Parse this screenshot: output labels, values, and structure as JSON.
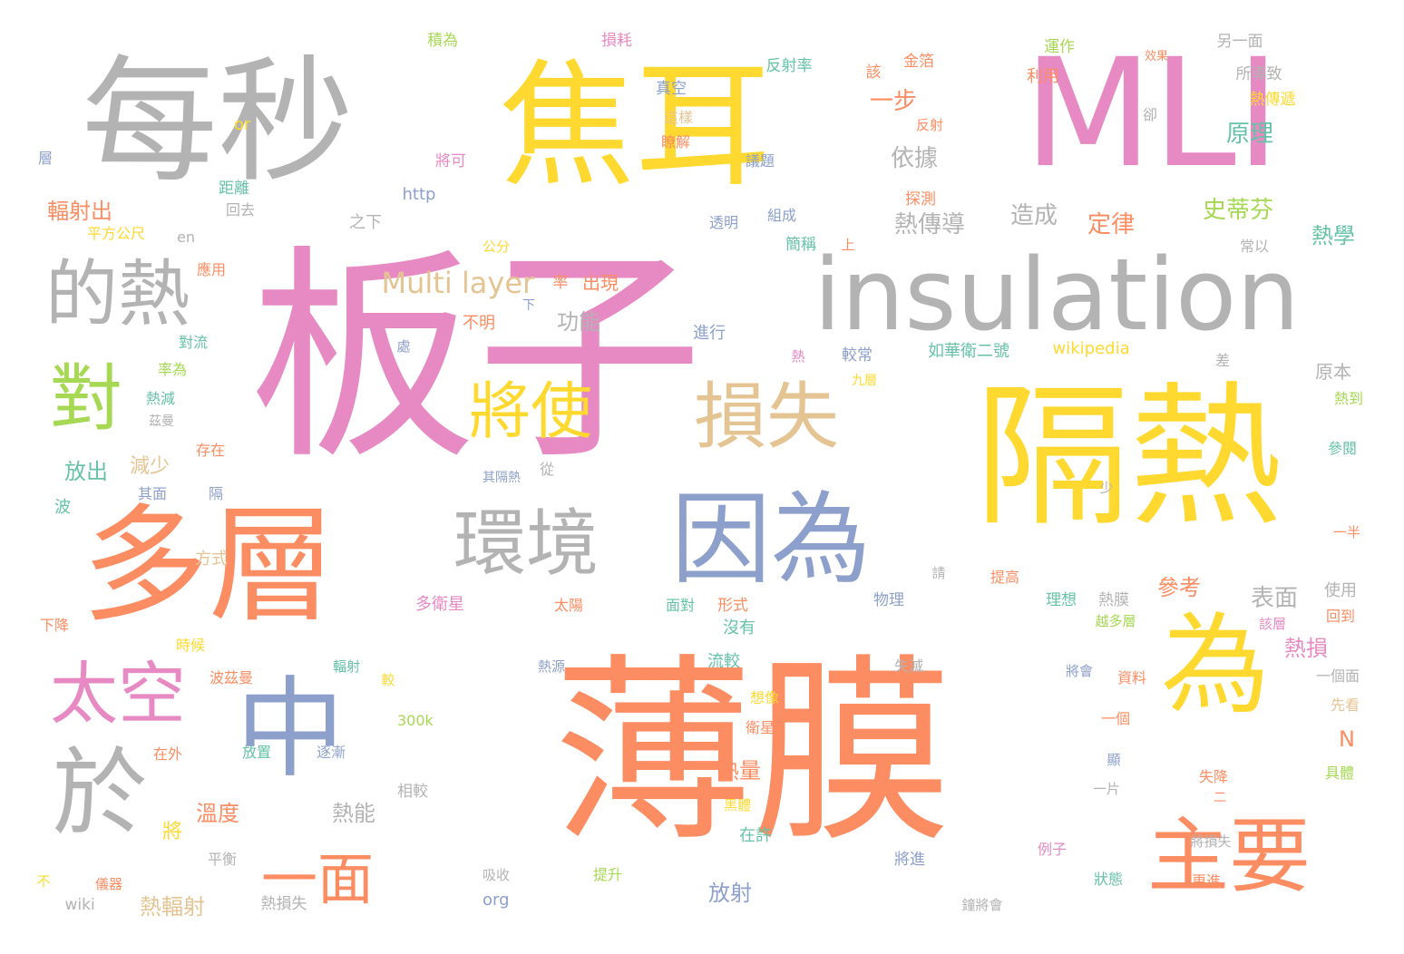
{
  "palette": {
    "gray": "#b3b3b3",
    "yellow": "#ffd92f",
    "pink": "#e78ac3",
    "orange": "#fc8d62",
    "blue": "#8da0cb",
    "tan": "#e5c494",
    "green": "#a6d854",
    "teal": "#66c2a5"
  },
  "words": [
    {
      "text": "每秒",
      "color": "gray"
    },
    {
      "text": "焦耳",
      "color": "yellow"
    },
    {
      "text": "MLI",
      "color": "pink"
    },
    {
      "text": "板子",
      "color": "pink"
    },
    {
      "text": "insulation",
      "color": "gray"
    },
    {
      "text": "的熱",
      "color": "gray"
    },
    {
      "text": "對",
      "color": "green"
    },
    {
      "text": "將使",
      "color": "yellow"
    },
    {
      "text": "損失",
      "color": "tan"
    },
    {
      "text": "隔熱",
      "color": "yellow"
    },
    {
      "text": "多層",
      "color": "orange"
    },
    {
      "text": "環境",
      "color": "gray"
    },
    {
      "text": "因為",
      "color": "blue"
    },
    {
      "text": "太空",
      "color": "pink"
    },
    {
      "text": "中",
      "color": "blue"
    },
    {
      "text": "薄膜",
      "color": "orange"
    },
    {
      "text": "為",
      "color": "yellow"
    },
    {
      "text": "於",
      "color": "gray"
    },
    {
      "text": "主要",
      "color": "orange"
    },
    {
      "text": "一面",
      "color": "orange"
    },
    {
      "text": "Multi layer",
      "color": "tan"
    },
    {
      "text": "熱傳導",
      "color": "gray"
    },
    {
      "text": "造成",
      "color": "gray"
    },
    {
      "text": "史蒂芬",
      "color": "green"
    },
    {
      "text": "定律",
      "color": "orange"
    },
    {
      "text": "依據",
      "color": "gray"
    },
    {
      "text": "一步",
      "color": "orange"
    },
    {
      "text": "原理",
      "color": "teal"
    },
    {
      "text": "熱學",
      "color": "teal"
    },
    {
      "text": "輻射出",
      "color": "orange"
    },
    {
      "text": "放出",
      "color": "teal"
    },
    {
      "text": "減少",
      "color": "tan"
    },
    {
      "text": "功能",
      "color": "gray"
    },
    {
      "text": "出現",
      "color": "orange"
    },
    {
      "text": "表面",
      "color": "gray"
    },
    {
      "text": "參考",
      "color": "orange"
    },
    {
      "text": "熱損",
      "color": "pink"
    },
    {
      "text": "原本",
      "color": "gray"
    },
    {
      "text": "熱量",
      "color": "orange"
    },
    {
      "text": "溫度",
      "color": "orange"
    },
    {
      "text": "熱能",
      "color": "gray"
    },
    {
      "text": "放射",
      "color": "blue"
    },
    {
      "text": "熱輻射",
      "color": "tan"
    },
    {
      "text": "將",
      "color": "yellow"
    },
    {
      "text": "N",
      "color": "orange"
    },
    {
      "text": "wikipedia",
      "color": "yellow"
    },
    {
      "text": "積為",
      "color": "green"
    },
    {
      "text": "損耗",
      "color": "pink"
    },
    {
      "text": "運作",
      "color": "green"
    },
    {
      "text": "另一面",
      "color": "gray"
    },
    {
      "text": "金箔",
      "color": "orange"
    },
    {
      "text": "反射率",
      "color": "teal"
    },
    {
      "text": "效果",
      "color": "orange"
    },
    {
      "text": "利用",
      "color": "orange"
    },
    {
      "text": "所導致",
      "color": "gray"
    },
    {
      "text": "真空",
      "color": "blue"
    },
    {
      "text": "該",
      "color": "orange"
    },
    {
      "text": "熱傳遞",
      "color": "yellow"
    },
    {
      "text": "這樣",
      "color": "tan"
    },
    {
      "text": "反射",
      "color": "orange"
    },
    {
      "text": "卻",
      "color": "gray"
    },
    {
      "text": "瞭解",
      "color": "orange"
    },
    {
      "text": "or",
      "color": "yellow"
    },
    {
      "text": "層",
      "color": "blue"
    },
    {
      "text": "將可",
      "color": "pink"
    },
    {
      "text": "議題",
      "color": "blue"
    },
    {
      "text": "距離",
      "color": "teal"
    },
    {
      "text": "http",
      "color": "blue"
    },
    {
      "text": "探測",
      "color": "orange"
    },
    {
      "text": "回去",
      "color": "gray"
    },
    {
      "text": "透明",
      "color": "blue"
    },
    {
      "text": "組成",
      "color": "blue"
    },
    {
      "text": "之下",
      "color": "gray"
    },
    {
      "text": "平方公尺",
      "color": "yellow"
    },
    {
      "text": "en",
      "color": "gray"
    },
    {
      "text": "公分",
      "color": "yellow"
    },
    {
      "text": "簡稱",
      "color": "teal"
    },
    {
      "text": "上",
      "color": "orange"
    },
    {
      "text": "常以",
      "color": "gray"
    },
    {
      "text": "應用",
      "color": "orange"
    },
    {
      "text": "率",
      "color": "orange"
    },
    {
      "text": "下",
      "color": "blue"
    },
    {
      "text": "不明",
      "color": "orange"
    },
    {
      "text": "進行",
      "color": "blue"
    },
    {
      "text": "對流",
      "color": "teal"
    },
    {
      "text": "處",
      "color": "blue"
    },
    {
      "text": "熱",
      "color": "pink"
    },
    {
      "text": "較常",
      "color": "blue"
    },
    {
      "text": "如華衛二號",
      "color": "teal"
    },
    {
      "text": "率為",
      "color": "green"
    },
    {
      "text": "九層",
      "color": "yellow"
    },
    {
      "text": "差",
      "color": "gray"
    },
    {
      "text": "熱到",
      "color": "green"
    },
    {
      "text": "熱減",
      "color": "teal"
    },
    {
      "text": "茲曼",
      "color": "gray"
    },
    {
      "text": "存在",
      "color": "orange"
    },
    {
      "text": "參閱",
      "color": "teal"
    },
    {
      "text": "其隔熱",
      "color": "blue"
    },
    {
      "text": "從",
      "color": "gray"
    },
    {
      "text": "少",
      "color": "gray"
    },
    {
      "text": "其面",
      "color": "blue"
    },
    {
      "text": "隔",
      "color": "blue"
    },
    {
      "text": "波",
      "color": "teal"
    },
    {
      "text": "一半",
      "color": "orange"
    },
    {
      "text": "方式",
      "color": "tan"
    },
    {
      "text": "請",
      "color": "gray"
    },
    {
      "text": "提高",
      "color": "orange"
    },
    {
      "text": "熱膜",
      "color": "gray"
    },
    {
      "text": "使用",
      "color": "gray"
    },
    {
      "text": "多衛星",
      "color": "pink"
    },
    {
      "text": "太陽",
      "color": "orange"
    },
    {
      "text": "面對",
      "color": "teal"
    },
    {
      "text": "形式",
      "color": "orange"
    },
    {
      "text": "物理",
      "color": "blue"
    },
    {
      "text": "理想",
      "color": "teal"
    },
    {
      "text": "越多層",
      "color": "green"
    },
    {
      "text": "該層",
      "color": "pink"
    },
    {
      "text": "回到",
      "color": "orange"
    },
    {
      "text": "下降",
      "color": "orange"
    },
    {
      "text": "時候",
      "color": "yellow"
    },
    {
      "text": "輻射",
      "color": "teal"
    },
    {
      "text": "沒有",
      "color": "teal"
    },
    {
      "text": "流較",
      "color": "teal"
    },
    {
      "text": "波茲曼",
      "color": "orange"
    },
    {
      "text": "較",
      "color": "yellow"
    },
    {
      "text": "熱源",
      "color": "blue"
    },
    {
      "text": "失滅",
      "color": "gray"
    },
    {
      "text": "將會",
      "color": "blue"
    },
    {
      "text": "資料",
      "color": "orange"
    },
    {
      "text": "一個面",
      "color": "gray"
    },
    {
      "text": "想像",
      "color": "yellow"
    },
    {
      "text": "300k",
      "color": "green"
    },
    {
      "text": "衛星",
      "color": "orange"
    },
    {
      "text": "一個",
      "color": "orange"
    },
    {
      "text": "先看",
      "color": "tan"
    },
    {
      "text": "在外",
      "color": "orange"
    },
    {
      "text": "放置",
      "color": "teal"
    },
    {
      "text": "逐漸",
      "color": "blue"
    },
    {
      "text": "顯",
      "color": "blue"
    },
    {
      "text": "失降",
      "color": "orange"
    },
    {
      "text": "具體",
      "color": "green"
    },
    {
      "text": "相較",
      "color": "gray"
    },
    {
      "text": "黑體",
      "color": "yellow"
    },
    {
      "text": "一片",
      "color": "gray"
    },
    {
      "text": "二",
      "color": "orange"
    },
    {
      "text": "在許",
      "color": "teal"
    },
    {
      "text": "將損失",
      "color": "gray"
    },
    {
      "text": "例子",
      "color": "pink"
    },
    {
      "text": "平衡",
      "color": "gray"
    },
    {
      "text": "將進",
      "color": "blue"
    },
    {
      "text": "不",
      "color": "yellow"
    },
    {
      "text": "儀器",
      "color": "orange"
    },
    {
      "text": "吸收",
      "color": "gray"
    },
    {
      "text": "提升",
      "color": "green"
    },
    {
      "text": "狀態",
      "color": "teal"
    },
    {
      "text": "更進",
      "color": "orange"
    },
    {
      "text": "wiki",
      "color": "gray"
    },
    {
      "text": "熱損失",
      "color": "gray"
    },
    {
      "text": "org",
      "color": "blue"
    },
    {
      "text": "鐘將會",
      "color": "gray"
    }
  ]
}
